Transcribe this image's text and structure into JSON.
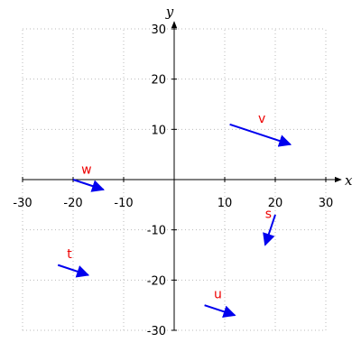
{
  "chart_data": {
    "type": "vector-field",
    "xlabel": "x",
    "ylabel": "y",
    "xlim": [
      -30,
      30
    ],
    "ylim": [
      -30,
      30
    ],
    "xticks": [
      -30,
      -20,
      -10,
      10,
      20,
      30
    ],
    "yticks": [
      30,
      20,
      10,
      -10,
      -20,
      -30
    ],
    "grid": true,
    "colors": {
      "vector": "#0000ee",
      "label": "#ee0000",
      "grid": "#bbbbbb",
      "axis": "#000000"
    },
    "vectors": [
      {
        "label": "v",
        "from": [
          11,
          11
        ],
        "to": [
          23,
          7
        ]
      },
      {
        "label": "w",
        "from": [
          -20,
          0
        ],
        "to": [
          -14,
          -2
        ]
      },
      {
        "label": "s",
        "from": [
          20,
          -7
        ],
        "to": [
          18,
          -13
        ]
      },
      {
        "label": "t",
        "from": [
          -23,
          -17
        ],
        "to": [
          -17,
          -19
        ]
      },
      {
        "label": "u",
        "from": [
          6,
          -25
        ],
        "to": [
          12,
          -27
        ]
      }
    ]
  }
}
